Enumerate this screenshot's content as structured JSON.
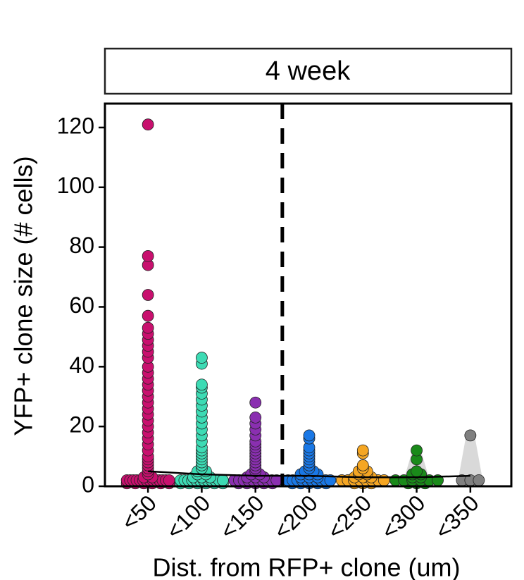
{
  "chart_data": {
    "type": "strip",
    "facet_title": "4 week",
    "y_label": "YFP+ clone size (# cells)",
    "x_label": "Dist. from RFP+ clone (um)",
    "categories": [
      "<50",
      "<100",
      "<150",
      "<200",
      "<250",
      "<300",
      "<350"
    ],
    "colors": [
      "#c8106e",
      "#3ddbb4",
      "#8a2fb0",
      "#1a78e6",
      "#f5a623",
      "#1a8a1a",
      "#808080"
    ],
    "values": [
      [
        121,
        77,
        74,
        64,
        57,
        53,
        51,
        49,
        47,
        45,
        43,
        40,
        38,
        36,
        34,
        32,
        30,
        28,
        26,
        24,
        22,
        20,
        18,
        16,
        14,
        12,
        10,
        9,
        8,
        7,
        6,
        5,
        4,
        3,
        3,
        2,
        2,
        2,
        2,
        2,
        2,
        2,
        2,
        2,
        2,
        2,
        2,
        2,
        2,
        1,
        1,
        1,
        1,
        1,
        1
      ],
      [
        43,
        41,
        34,
        33,
        31,
        29,
        27,
        25,
        23,
        21,
        19,
        17,
        15,
        13,
        12,
        11,
        10,
        9,
        8,
        7,
        6,
        5,
        5,
        4,
        4,
        3,
        3,
        3,
        2,
        2,
        2,
        2,
        2,
        2,
        2,
        2,
        2,
        2,
        2,
        2,
        1,
        1,
        1,
        1,
        1,
        1
      ],
      [
        28,
        23,
        21,
        19,
        17,
        15,
        14,
        13,
        12,
        11,
        10,
        9,
        8,
        7,
        6,
        5,
        4,
        4,
        3,
        3,
        3,
        2,
        2,
        2,
        2,
        2,
        2,
        2,
        2,
        2,
        2,
        1,
        1,
        1,
        1,
        1
      ],
      [
        17,
        16,
        13,
        12,
        11,
        10,
        9,
        8,
        7,
        6,
        5,
        5,
        4,
        4,
        4,
        3,
        3,
        3,
        2,
        2,
        2,
        2,
        2,
        2,
        2,
        2,
        2,
        2,
        1,
        1,
        1,
        1,
        1
      ],
      [
        12,
        11,
        7,
        6,
        5,
        5,
        4,
        4,
        3,
        3,
        3,
        2,
        2,
        2,
        2,
        2,
        2,
        2,
        2,
        1,
        1,
        1
      ],
      [
        12,
        9,
        5,
        4,
        4,
        3,
        3,
        2,
        2,
        2,
        2,
        2,
        2,
        1,
        1,
        1
      ],
      [
        17,
        2,
        2,
        2
      ]
    ],
    "mean_values": [
      5,
      4,
      3.5,
      3.5,
      3,
      3,
      3.5
    ],
    "ylim": [
      0,
      128
    ],
    "yticks": [
      0,
      20,
      40,
      60,
      80,
      100,
      120
    ]
  }
}
